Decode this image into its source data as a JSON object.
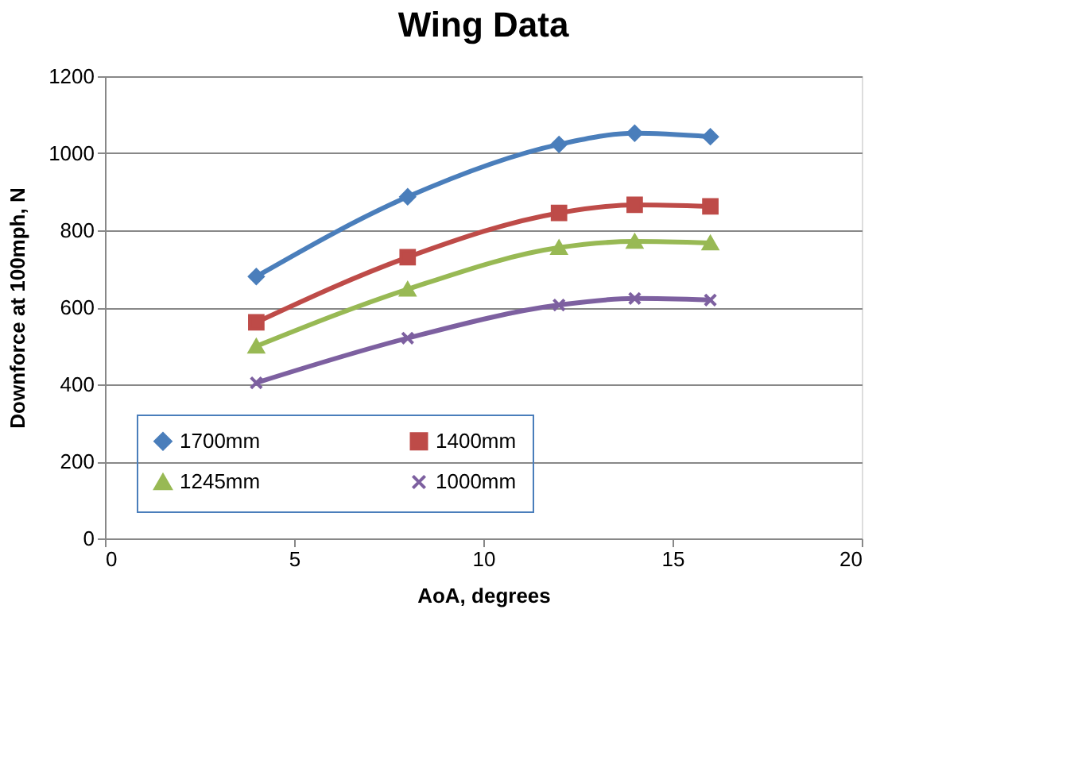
{
  "chart_data": {
    "type": "line",
    "title": "Wing Data",
    "xlabel": "AoA, degrees",
    "ylabel": "Downforce at 100mph, N",
    "x": [
      4,
      8,
      12,
      14,
      16
    ],
    "series": [
      {
        "name": "1700mm",
        "color": "#4a7ebb",
        "marker": "diamond",
        "values": [
          680,
          887,
          1023,
          1052,
          1043
        ]
      },
      {
        "name": "1400mm",
        "color": "#be4b48",
        "marker": "square",
        "values": [
          561,
          730,
          845,
          866,
          862
        ]
      },
      {
        "name": "1245mm",
        "color": "#98b954",
        "marker": "triangle",
        "values": [
          499,
          647,
          755,
          771,
          767
        ]
      },
      {
        "name": "1000mm",
        "color": "#7d60a0",
        "marker": "cross",
        "values": [
          404,
          520,
          606,
          623,
          619
        ]
      }
    ],
    "xlim": [
      0,
      20
    ],
    "xticks": [
      0,
      5,
      10,
      15,
      20
    ],
    "ylim": [
      0,
      1200
    ],
    "yticks": [
      0,
      200,
      400,
      600,
      800,
      1000,
      1200
    ],
    "grid": "y",
    "legend": "bottom",
    "line_style": "solid"
  }
}
